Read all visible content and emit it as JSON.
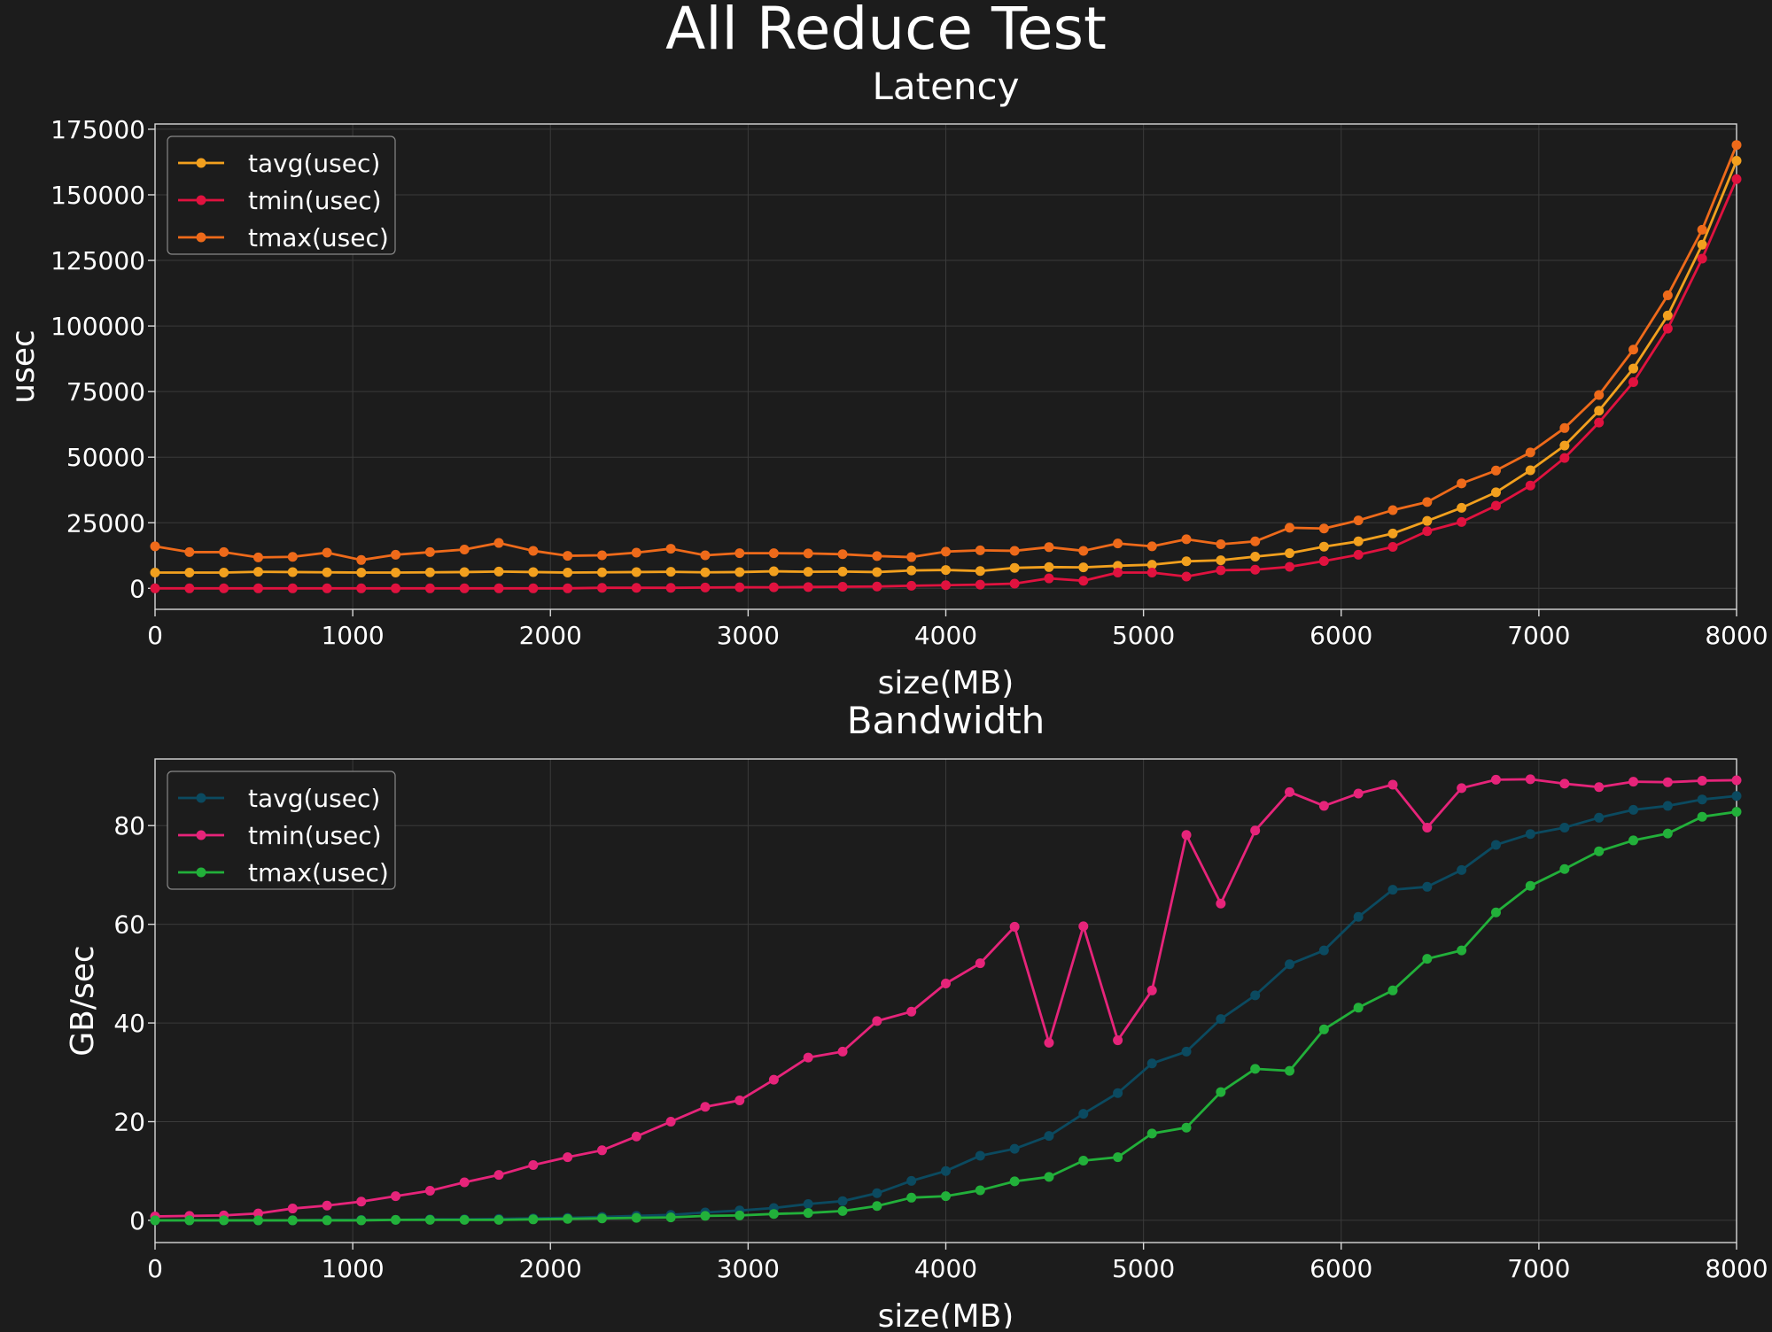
{
  "figure": {
    "title": "All Reduce Test"
  },
  "colors": {
    "background": "#1c1c1c",
    "grid": "#3a3a3a",
    "axes": "#d8d8d8",
    "text": "#ffffff",
    "latency_tavg": "#f2a01e",
    "latency_tmin": "#e0123f",
    "latency_tmax": "#ee6a1a",
    "bw_tavg": "#0b4a60",
    "bw_tmin": "#e6247a",
    "bw_tmax": "#22b03a"
  },
  "chart_data": [
    {
      "type": "line",
      "title": "Latency",
      "xlabel": "size(MB)",
      "ylabel": "usec",
      "xlim": [
        0,
        8000
      ],
      "ylim": [
        -8000,
        177000
      ],
      "xticks": [
        0,
        1000,
        2000,
        3000,
        4000,
        5000,
        6000,
        7000,
        8000
      ],
      "yticks": [
        0,
        25000,
        50000,
        75000,
        100000,
        125000,
        150000,
        175000
      ],
      "grid": true,
      "legend_position": "top-left",
      "x": [
        0,
        174,
        348,
        522,
        696,
        870,
        1043,
        1217,
        1391,
        1565,
        1739,
        1913,
        2087,
        2261,
        2435,
        2609,
        2783,
        2957,
        3130,
        3304,
        3478,
        3652,
        3826,
        4000,
        4174,
        4348,
        4522,
        4696,
        4870,
        5043,
        5217,
        5391,
        5565,
        5739,
        5913,
        6087,
        6261,
        6435,
        6609,
        6783,
        6957,
        7130,
        7304,
        7478,
        7652,
        7826,
        8000
      ],
      "series": [
        {
          "name": "tavg(usec)",
          "color_key": "latency_tavg",
          "values": [
            6000,
            6000,
            6000,
            6300,
            6200,
            6100,
            6000,
            6000,
            6100,
            6200,
            6400,
            6200,
            6000,
            6100,
            6200,
            6300,
            6100,
            6200,
            6500,
            6300,
            6400,
            6200,
            6800,
            7000,
            6600,
            7800,
            8100,
            8000,
            8600,
            9000,
            10300,
            10700,
            12100,
            13400,
            15900,
            17900,
            20900,
            25700,
            30700,
            36600,
            45000,
            54400,
            67700,
            83800,
            104000,
            131000,
            163000
          ]
        },
        {
          "name": "tmin(usec)",
          "color_key": "latency_tmin",
          "values": [
            0,
            0,
            0,
            0,
            0,
            0,
            0,
            0,
            0,
            0,
            0,
            0,
            0,
            200,
            200,
            200,
            300,
            400,
            400,
            500,
            600,
            700,
            1000,
            1200,
            1400,
            1800,
            3800,
            2900,
            6000,
            6000,
            4500,
            6900,
            7100,
            8200,
            10400,
            12800,
            15800,
            21800,
            25300,
            31500,
            39200,
            49700,
            63200,
            78600,
            99000,
            125700,
            156000
          ]
        },
        {
          "name": "tmax(usec)",
          "color_key": "latency_tmax",
          "values": [
            16000,
            13800,
            13800,
            11800,
            12000,
            13600,
            10800,
            12800,
            13800,
            14800,
            17300,
            14300,
            12400,
            12600,
            13600,
            15100,
            12600,
            13400,
            13400,
            13300,
            13000,
            12300,
            11900,
            14000,
            14500,
            14300,
            15700,
            14300,
            17100,
            16000,
            18700,
            16800,
            17900,
            23100,
            22800,
            25900,
            29800,
            32900,
            40000,
            44900,
            51800,
            61100,
            73700,
            91000,
            111700,
            136700,
            169000
          ]
        }
      ]
    },
    {
      "type": "line",
      "title": "Bandwidth",
      "xlabel": "size(MB)",
      "ylabel": "GB/sec",
      "xlim": [
        0,
        8000
      ],
      "ylim": [
        -4.5,
        93.5
      ],
      "xticks": [
        0,
        1000,
        2000,
        3000,
        4000,
        5000,
        6000,
        7000,
        8000
      ],
      "yticks": [
        0,
        20,
        40,
        60,
        80
      ],
      "grid": true,
      "legend_position": "top-left",
      "x": [
        0,
        174,
        348,
        522,
        696,
        870,
        1043,
        1217,
        1391,
        1565,
        1739,
        1913,
        2087,
        2261,
        2435,
        2609,
        2783,
        2957,
        3130,
        3304,
        3478,
        3652,
        3826,
        4000,
        4174,
        4348,
        4522,
        4696,
        4870,
        5043,
        5217,
        5391,
        5565,
        5739,
        5913,
        6087,
        6261,
        6435,
        6609,
        6783,
        6957,
        7130,
        7304,
        7478,
        7652,
        7826,
        8000
      ],
      "series": [
        {
          "name": "tavg(usec)",
          "color_key": "bw_tavg",
          "values": [
            0,
            0,
            0,
            0,
            0,
            0.1,
            0.1,
            0.1,
            0.2,
            0.2,
            0.3,
            0.4,
            0.5,
            0.7,
            0.9,
            1.1,
            1.6,
            2.0,
            2.5,
            3.3,
            3.9,
            5.5,
            8.0,
            10.0,
            13.1,
            14.5,
            17.1,
            21.6,
            25.8,
            31.8,
            34.2,
            40.8,
            45.6,
            51.9,
            54.7,
            61.5,
            67.0,
            67.6,
            71.0,
            76.1,
            78.3,
            79.6,
            81.6,
            83.2,
            84.0,
            85.3,
            86.0
          ]
        },
        {
          "name": "tmin(usec)",
          "color_key": "bw_tmin",
          "values": [
            0.8,
            0.9,
            1.0,
            1.4,
            2.4,
            3.0,
            3.8,
            4.9,
            6.0,
            7.7,
            9.2,
            11.2,
            12.8,
            14.2,
            17.0,
            20.0,
            23.0,
            24.3,
            28.5,
            33.0,
            34.2,
            40.4,
            42.3,
            48.0,
            52.1,
            59.5,
            36.0,
            59.6,
            36.5,
            46.6,
            78.1,
            64.2,
            79.0,
            86.8,
            84.0,
            86.5,
            88.3,
            79.6,
            87.6,
            89.3,
            89.4,
            88.5,
            87.8,
            88.9,
            88.8,
            89.1,
            89.2
          ]
        },
        {
          "name": "tmax(usec)",
          "color_key": "bw_tmax",
          "values": [
            0,
            0,
            0,
            0,
            0,
            0,
            0,
            0.1,
            0.1,
            0.1,
            0.1,
            0.2,
            0.3,
            0.4,
            0.5,
            0.6,
            0.9,
            1.0,
            1.3,
            1.5,
            1.9,
            2.9,
            4.6,
            4.9,
            6.1,
            7.9,
            8.8,
            12.1,
            12.8,
            17.6,
            18.8,
            26.0,
            30.7,
            30.3,
            38.7,
            43.1,
            46.6,
            53.0,
            54.7,
            62.4,
            67.8,
            71.2,
            74.8,
            77.0,
            78.4,
            81.8,
            82.8
          ]
        }
      ]
    }
  ]
}
